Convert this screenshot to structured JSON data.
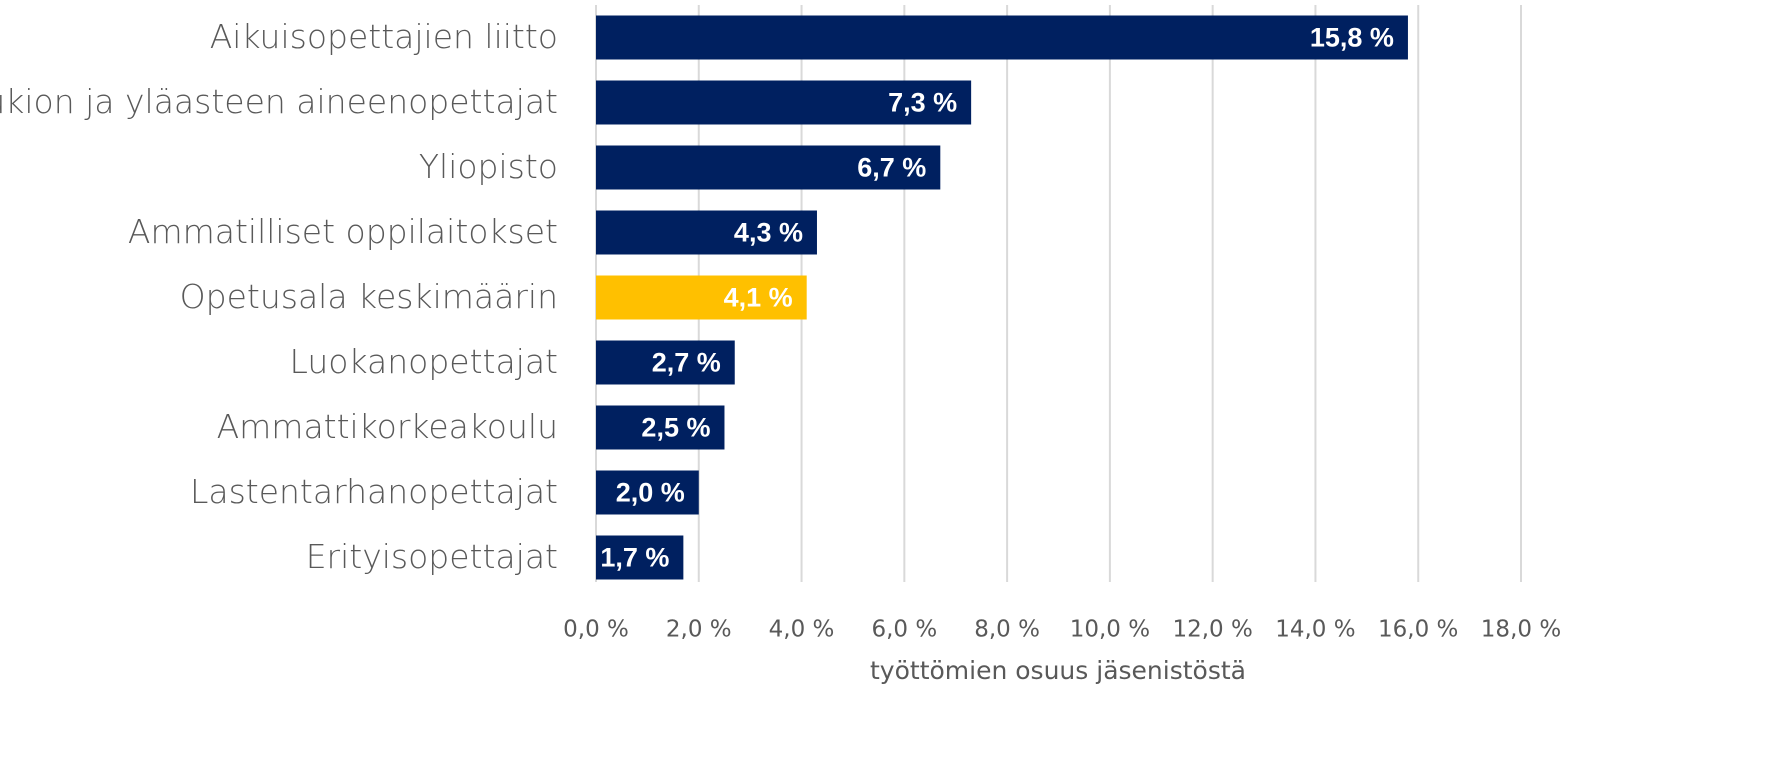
{
  "chart_data": {
    "type": "bar",
    "orientation": "horizontal",
    "x_label": "työttömien osuus jäsenistöstä",
    "categories": [
      "Aikuisopettajien liitto",
      "Lukion ja yläasteen aineenopettajat",
      "Yliopisto",
      "Ammatilliset oppilaitokset",
      "Opetusala keskimäärin",
      "Luokanopettajat",
      "Ammattikorkeakoulu",
      "Lastentarhanopettajat",
      "Erityisopettajat"
    ],
    "values": [
      15.8,
      7.3,
      6.7,
      4.3,
      4.1,
      2.7,
      2.5,
      2.0,
      1.7
    ],
    "value_labels": [
      "15,8 %",
      "7,3 %",
      "6,7 %",
      "4,3 %",
      "4,1 %",
      "2,7 %",
      "2,5 %",
      "2,0 %",
      "1,7 %"
    ],
    "colors": [
      "#002060",
      "#002060",
      "#002060",
      "#002060",
      "#ffc000",
      "#002060",
      "#002060",
      "#002060",
      "#002060"
    ],
    "xlim": [
      0,
      18
    ],
    "xticks": [
      {
        "value": 0,
        "label": "0,0 %"
      },
      {
        "value": 2,
        "label": "2,0 %"
      },
      {
        "value": 4,
        "label": "4,0 %"
      },
      {
        "value": 6,
        "label": "6,0 %"
      },
      {
        "value": 8,
        "label": "8,0 %"
      },
      {
        "value": 10,
        "label": "10,0 %"
      },
      {
        "value": 12,
        "label": "12,0 %"
      },
      {
        "value": 14,
        "label": "14,0 %"
      },
      {
        "value": 16,
        "label": "16,0 %"
      },
      {
        "value": 18,
        "label": "18,0 %"
      }
    ],
    "grid": true
  }
}
